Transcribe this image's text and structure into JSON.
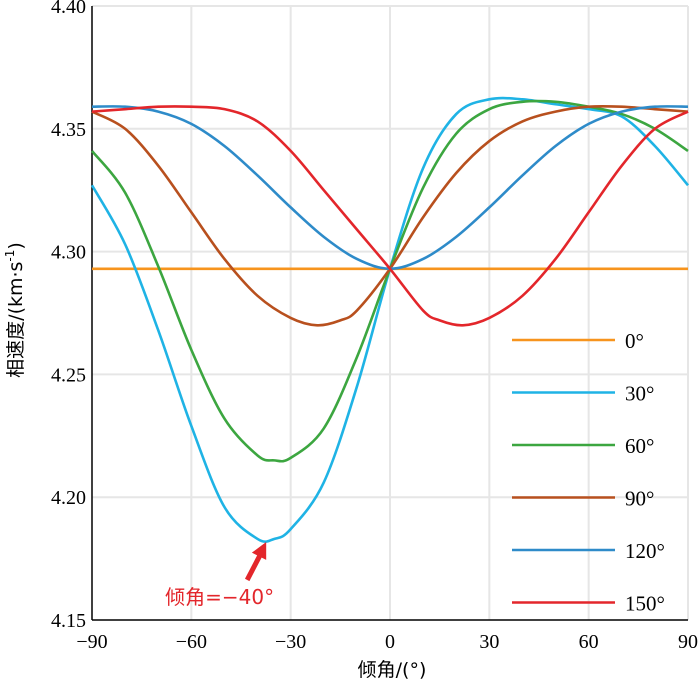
{
  "chart_data": {
    "type": "line",
    "title": "",
    "xlabel": "倾角/(°)",
    "ylabel_main": "相速度/(km·s",
    "ylabel_exp": "-1",
    "ylabel_close": ")",
    "xlim": [
      -90,
      90
    ],
    "ylim": [
      4.15,
      4.4
    ],
    "xticks": [
      -90,
      -60,
      -30,
      0,
      30,
      60,
      90
    ],
    "xtick_labels": [
      "−90",
      "−60",
      "−30",
      "0",
      "30",
      "60",
      "90"
    ],
    "yticks": [
      4.15,
      4.2,
      4.25,
      4.3,
      4.35,
      4.4
    ],
    "ytick_labels": [
      "4.15",
      "4.20",
      "4.25",
      "4.30",
      "4.35",
      "4.40"
    ],
    "grid": true,
    "legend_position": "lower-right",
    "series": [
      {
        "name": "0°",
        "color": "#f7941d",
        "x": [
          -90,
          -60,
          -30,
          0,
          30,
          60,
          90
        ],
        "y": [
          4.293,
          4.293,
          4.293,
          4.293,
          4.293,
          4.293,
          4.293
        ]
      },
      {
        "name": "30°",
        "color": "#1fb3e5",
        "x": [
          -90,
          -80,
          -70,
          -60,
          -50,
          -40,
          -35,
          -30,
          -20,
          -10,
          0,
          10,
          20,
          30,
          40,
          50,
          60,
          70,
          80,
          90
        ],
        "y": [
          4.327,
          4.303,
          4.268,
          4.229,
          4.196,
          4.183,
          4.183,
          4.187,
          4.206,
          4.245,
          4.293,
          4.334,
          4.356,
          4.362,
          4.362,
          4.36,
          4.358,
          4.355,
          4.343,
          4.327
        ]
      },
      {
        "name": "60°",
        "color": "#3ca640",
        "x": [
          -90,
          -80,
          -70,
          -60,
          -50,
          -40,
          -35,
          -30,
          -20,
          -10,
          0,
          10,
          20,
          30,
          40,
          50,
          60,
          70,
          80,
          90
        ],
        "y": [
          4.341,
          4.324,
          4.294,
          4.26,
          4.232,
          4.217,
          4.215,
          4.216,
          4.228,
          4.257,
          4.293,
          4.326,
          4.348,
          4.358,
          4.361,
          4.361,
          4.359,
          4.356,
          4.35,
          4.341
        ]
      },
      {
        "name": "90°",
        "color": "#b8501e",
        "x": [
          -90,
          -80,
          -70,
          -60,
          -50,
          -40,
          -30,
          -22,
          -15,
          -10,
          0,
          10,
          20,
          30,
          40,
          50,
          60,
          70,
          80,
          90
        ],
        "y": [
          4.357,
          4.35,
          4.335,
          4.316,
          4.297,
          4.282,
          4.273,
          4.27,
          4.272,
          4.276,
          4.293,
          4.314,
          4.332,
          4.345,
          4.353,
          4.357,
          4.359,
          4.359,
          4.358,
          4.357
        ]
      },
      {
        "name": "120°",
        "color": "#2e8bc9",
        "x": [
          -90,
          -80,
          -70,
          -60,
          -50,
          -40,
          -30,
          -20,
          -10,
          0,
          10,
          20,
          30,
          40,
          50,
          60,
          70,
          80,
          90
        ],
        "y": [
          4.359,
          4.359,
          4.357,
          4.352,
          4.343,
          4.331,
          4.318,
          4.306,
          4.297,
          4.293,
          4.297,
          4.306,
          4.318,
          4.331,
          4.343,
          4.352,
          4.357,
          4.359,
          4.359
        ]
      },
      {
        "name": "150°",
        "color": "#e3262b",
        "x": [
          -90,
          -80,
          -70,
          -60,
          -50,
          -40,
          -30,
          -20,
          -10,
          0,
          10,
          15,
          22,
          30,
          40,
          50,
          60,
          70,
          80,
          90
        ],
        "y": [
          4.357,
          4.358,
          4.359,
          4.359,
          4.358,
          4.353,
          4.341,
          4.325,
          4.309,
          4.293,
          4.276,
          4.272,
          4.27,
          4.273,
          4.282,
          4.297,
          4.316,
          4.335,
          4.35,
          4.357
        ]
      }
    ],
    "annotation": {
      "text": "倾角=−40°",
      "x": -38,
      "y": 4.183,
      "color": "#e3262b"
    }
  }
}
